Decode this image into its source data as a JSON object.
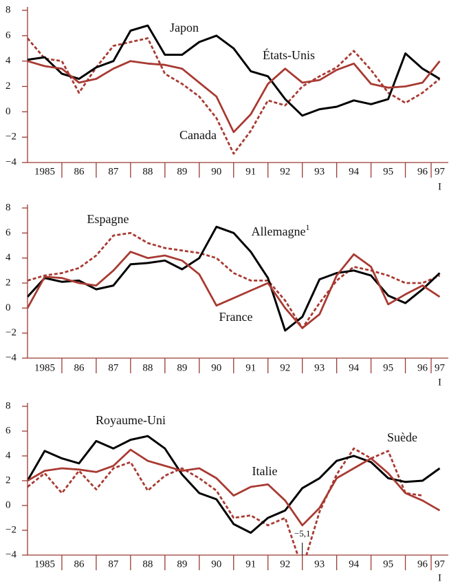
{
  "chart_data": [
    {
      "type": "line",
      "x": [
        1985,
        1985.5,
        1986,
        1986.5,
        1987,
        1987.5,
        1988,
        1988.5,
        1989,
        1989.5,
        1990,
        1990.5,
        1991,
        1991.5,
        1992,
        1992.5,
        1993,
        1993.5,
        1994,
        1994.5,
        1995,
        1995.5,
        1996,
        1996.5,
        1997
      ],
      "xlim": [
        1985,
        1997.25
      ],
      "xticks": [
        {
          "value": 1985.5,
          "label": "1985"
        },
        {
          "value": 1986.5,
          "label": "86"
        },
        {
          "value": 1987.5,
          "label": "87"
        },
        {
          "value": 1988.5,
          "label": "88"
        },
        {
          "value": 1989.5,
          "label": "89"
        },
        {
          "value": 1990.5,
          "label": "90"
        },
        {
          "value": 1991.5,
          "label": "91"
        },
        {
          "value": 1992.5,
          "label": "92"
        },
        {
          "value": 1993.5,
          "label": "93"
        },
        {
          "value": 1994.5,
          "label": "94"
        },
        {
          "value": 1995.5,
          "label": "95"
        },
        {
          "value": 1996.5,
          "label": "96"
        },
        {
          "value": 1997,
          "label": "97"
        }
      ],
      "x_sublabel": "I",
      "ylim": [
        -4,
        8
      ],
      "yticks": [
        {
          "value": -4,
          "label": "−4"
        },
        {
          "value": -2,
          "label": "−2"
        },
        0,
        2,
        4,
        6,
        8
      ],
      "series": [
        {
          "name": "Japon",
          "color": "#000000",
          "dash": false,
          "values": [
            4.1,
            4.3,
            3.0,
            2.6,
            3.5,
            4.0,
            6.4,
            6.8,
            4.5,
            4.5,
            5.5,
            6.0,
            5.0,
            3.2,
            2.8,
            1.0,
            -0.3,
            0.2,
            0.4,
            0.9,
            0.6,
            1.0,
            4.6,
            3.4,
            2.6
          ]
        },
        {
          "name": "États-Unis",
          "color": "#a83a32",
          "dash": false,
          "values": [
            4.0,
            3.6,
            3.4,
            2.3,
            2.6,
            3.4,
            4.0,
            3.8,
            3.7,
            3.4,
            2.3,
            1.2,
            -1.6,
            -0.2,
            2.2,
            3.4,
            2.3,
            2.5,
            3.3,
            3.8,
            2.2,
            1.9,
            2.0,
            2.3,
            4.0
          ]
        },
        {
          "name": "Canada",
          "color": "#a83a32",
          "dash": true,
          "values": [
            5.8,
            4.2,
            4.0,
            1.5,
            3.5,
            5.2,
            5.5,
            5.8,
            3.0,
            2.2,
            1.2,
            -0.5,
            -3.3,
            -1.5,
            0.9,
            0.5,
            2.0,
            2.8,
            3.5,
            4.8,
            3.3,
            1.5,
            0.7,
            1.5,
            2.6
          ]
        }
      ]
    },
    {
      "type": "line",
      "x": [
        1985,
        1985.5,
        1986,
        1986.5,
        1987,
        1987.5,
        1988,
        1988.5,
        1989,
        1989.5,
        1990,
        1990.5,
        1991,
        1991.5,
        1992,
        1992.5,
        1993,
        1993.5,
        1994,
        1994.5,
        1995,
        1995.5,
        1996,
        1996.5,
        1997
      ],
      "xlim": [
        1985,
        1997.25
      ],
      "xticks": [
        {
          "value": 1985.5,
          "label": "1985"
        },
        {
          "value": 1986.5,
          "label": "86"
        },
        {
          "value": 1987.5,
          "label": "87"
        },
        {
          "value": 1988.5,
          "label": "88"
        },
        {
          "value": 1989.5,
          "label": "89"
        },
        {
          "value": 1990.5,
          "label": "90"
        },
        {
          "value": 1991.5,
          "label": "91"
        },
        {
          "value": 1992.5,
          "label": "92"
        },
        {
          "value": 1993.5,
          "label": "93"
        },
        {
          "value": 1994.5,
          "label": "94"
        },
        {
          "value": 1995.5,
          "label": "95"
        },
        {
          "value": 1996.5,
          "label": "96"
        },
        {
          "value": 1997,
          "label": "97"
        }
      ],
      "x_sublabel": "I",
      "ylim": [
        -4,
        8
      ],
      "yticks": [
        {
          "value": -4,
          "label": "−4"
        },
        {
          "value": -2,
          "label": "−2"
        },
        0,
        2,
        4,
        6,
        8
      ],
      "series": [
        {
          "name": "Espagne",
          "color": "#a83a32",
          "dash": true,
          "values": [
            2.2,
            2.6,
            2.8,
            3.2,
            4.2,
            5.8,
            6.0,
            5.2,
            4.8,
            4.6,
            4.4,
            4.0,
            2.8,
            2.2,
            2.2,
            0.6,
            -1.6,
            0.4,
            2.2,
            3.3,
            3.0,
            2.6,
            2.0,
            2.0,
            2.6
          ]
        },
        {
          "name": "Allemagne",
          "note": "1",
          "color": "#000000",
          "dash": false,
          "values": [
            0.9,
            2.4,
            2.1,
            2.2,
            1.5,
            1.8,
            3.5,
            3.6,
            3.8,
            3.1,
            4.0,
            6.5,
            6.0,
            4.5,
            2.4,
            -1.8,
            -0.7,
            2.3,
            2.8,
            3.0,
            2.6,
            1.0,
            0.4,
            1.5,
            2.8
          ]
        },
        {
          "name": "France",
          "color": "#a83a32",
          "dash": false,
          "values": [
            0.0,
            2.5,
            2.4,
            2.0,
            1.8,
            3.0,
            4.5,
            4.0,
            4.2,
            3.8,
            2.7,
            0.2,
            0.8,
            1.4,
            2.0,
            0.0,
            -1.6,
            -0.5,
            2.6,
            4.3,
            3.3,
            0.3,
            1.1,
            1.8,
            0.9
          ]
        }
      ]
    },
    {
      "type": "line",
      "x": [
        1985,
        1985.5,
        1986,
        1986.5,
        1987,
        1987.5,
        1988,
        1988.5,
        1989,
        1989.5,
        1990,
        1990.5,
        1991,
        1991.5,
        1992,
        1992.5,
        1993,
        1993.5,
        1994,
        1994.5,
        1995,
        1995.5,
        1996,
        1996.5,
        1997
      ],
      "xlim": [
        1985,
        1997.25
      ],
      "xticks": [
        {
          "value": 1985.5,
          "label": "1985"
        },
        {
          "value": 1986.5,
          "label": "86"
        },
        {
          "value": 1987.5,
          "label": "87"
        },
        {
          "value": 1988.5,
          "label": "88"
        },
        {
          "value": 1989.5,
          "label": "89"
        },
        {
          "value": 1990.5,
          "label": "90"
        },
        {
          "value": 1991.5,
          "label": "91"
        },
        {
          "value": 1992.5,
          "label": "92"
        },
        {
          "value": 1993.5,
          "label": "93"
        },
        {
          "value": 1994.5,
          "label": "94"
        },
        {
          "value": 1995.5,
          "label": "95"
        },
        {
          "value": 1996.5,
          "label": "96"
        },
        {
          "value": 1997,
          "label": "97"
        }
      ],
      "x_sublabel": "I",
      "ylim": [
        -4,
        8
      ],
      "yticks": [
        {
          "value": -4,
          "label": "−4"
        },
        {
          "value": -2,
          "label": "−2"
        },
        0,
        2,
        4,
        6,
        8
      ],
      "series": [
        {
          "name": "Royaume-Uni",
          "color": "#000000",
          "dash": false,
          "values": [
            2.0,
            4.4,
            3.8,
            3.4,
            5.2,
            4.6,
            5.3,
            5.6,
            4.6,
            2.5,
            1.0,
            0.5,
            -1.5,
            -2.2,
            -1.0,
            -0.4,
            1.4,
            2.2,
            3.6,
            4.0,
            3.5,
            2.2,
            1.9,
            2.0,
            3.0
          ]
        },
        {
          "name": "Italie",
          "color": "#a83a32",
          "dash": false,
          "values": [
            2.0,
            2.8,
            3.0,
            2.9,
            2.7,
            3.2,
            4.5,
            3.6,
            3.2,
            2.8,
            3.0,
            2.2,
            0.8,
            1.5,
            1.7,
            0.4,
            -1.6,
            -0.2,
            2.2,
            3.0,
            3.8,
            2.6,
            1.0,
            0.4,
            -0.4
          ]
        },
        {
          "name": "Suède",
          "color": "#a83a32",
          "dash": true,
          "values": [
            1.5,
            2.6,
            1.0,
            2.8,
            1.3,
            3.0,
            3.5,
            1.2,
            2.4,
            3.0,
            2.2,
            1.2,
            -1.0,
            -0.8,
            -1.6,
            -1.0,
            -5.1,
            -0.5,
            2.5,
            4.6,
            3.8,
            4.4,
            1.0,
            0.8,
            null
          ],
          "value_labels": [
            null,
            null,
            null,
            null,
            null,
            null,
            null,
            null,
            null,
            null,
            null,
            null,
            null,
            null,
            null,
            null,
            "−5,1",
            null,
            null,
            null,
            null,
            null,
            null,
            null,
            null
          ]
        }
      ]
    }
  ]
}
